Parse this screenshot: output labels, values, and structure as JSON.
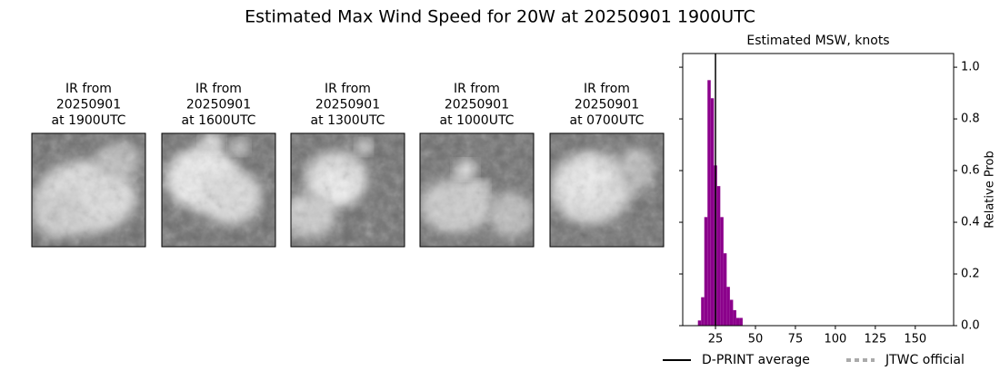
{
  "title": "Estimated Max Wind Speed for 20W at 20250901 1900UTC",
  "images": [
    {
      "title_lines": [
        "IR from",
        "20250901",
        "at 1900UTC"
      ]
    },
    {
      "title_lines": [
        "IR from",
        "20250901",
        "at 1600UTC"
      ]
    },
    {
      "title_lines": [
        "IR from",
        "20250901",
        "at 1300UTC"
      ]
    },
    {
      "title_lines": [
        "IR from",
        "20250901",
        "at 1000UTC"
      ]
    },
    {
      "title_lines": [
        "IR from",
        "20250901",
        "at 0700UTC"
      ]
    }
  ],
  "chart_data": {
    "type": "histogram",
    "title": "Estimated MSW, knots",
    "ylabel": "Relative Prob",
    "bins": [
      14,
      16,
      18,
      20,
      22,
      24,
      26,
      28,
      30,
      32,
      34,
      36,
      38,
      40,
      42
    ],
    "values": [
      0.02,
      0.11,
      0.42,
      0.95,
      0.88,
      0.62,
      0.54,
      0.42,
      0.28,
      0.15,
      0.1,
      0.06,
      0.03,
      0.03
    ],
    "color": "#8b008b",
    "dprint_average": 25,
    "xlim": [
      4.5,
      174
    ],
    "ylim": [
      0,
      1.053
    ],
    "xticks": [
      25,
      50,
      75,
      100,
      125,
      150
    ],
    "yticks": [
      {
        "value": 0,
        "label": "0.0"
      },
      0.2,
      0.4,
      0.6,
      0.8,
      {
        "value": 1,
        "label": "1.0"
      }
    ],
    "legend": [
      {
        "name": "D-PRINT average",
        "color": "#000000",
        "style": "solid"
      },
      {
        "name": "JTWC official",
        "color": "#aaaaaa",
        "style": "dotted"
      }
    ],
    "legend_loc": "below"
  }
}
